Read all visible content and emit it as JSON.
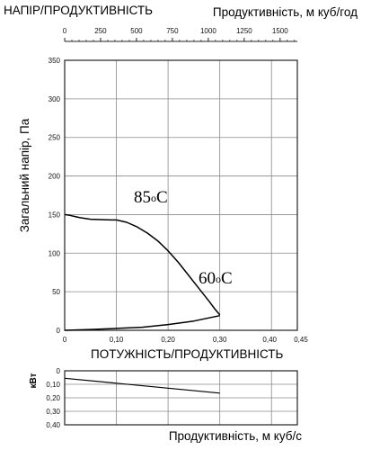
{
  "header": {
    "left_title": "НАПІР/ПРОДУКТИВНІСТЬ",
    "right_title": "Продуктивність, м куб/год"
  },
  "top_axis": {
    "ticks": [
      "0",
      "250",
      "500",
      "750",
      "1000",
      "1250",
      "1500"
    ],
    "range": [
      0,
      1620
    ]
  },
  "chart_data": [
    {
      "type": "line",
      "xlabel": "",
      "ylabel": "Загальний напір, Па",
      "xlim": [
        0,
        0.45
      ],
      "ylim": [
        0,
        350
      ],
      "x_ticks": [
        "0",
        "0,10",
        "0,20",
        "0,30",
        "0,40",
        "0,45"
      ],
      "y_ticks": [
        "0",
        "50",
        "100",
        "150",
        "200",
        "250",
        "300",
        "350"
      ],
      "grid": true,
      "series": [
        {
          "role": "pressure",
          "x": [
            0,
            0.01,
            0.02,
            0.03,
            0.04,
            0.05,
            0.07,
            0.09,
            0.1,
            0.12,
            0.14,
            0.16,
            0.18,
            0.2,
            0.22,
            0.24,
            0.26,
            0.28,
            0.29,
            0.3
          ],
          "y": [
            150,
            149,
            147.5,
            146,
            145,
            144,
            143.5,
            143,
            143,
            140,
            134,
            126,
            116,
            103,
            88,
            71,
            54,
            37,
            28,
            20
          ]
        },
        {
          "role": "power-on-head-axes",
          "x": [
            0,
            0.05,
            0.1,
            0.15,
            0.2,
            0.25,
            0.3
          ],
          "y": [
            0,
            1,
            2.5,
            4,
            7.5,
            12,
            19
          ]
        }
      ],
      "annotations": [
        {
          "base": "85",
          "sup": "o",
          "unit": "C"
        },
        {
          "base": "60",
          "sup": "o",
          "unit": "C"
        }
      ],
      "footer_label": "ПОТУЖНІСТЬ/ПРОДУКТИВНІСТЬ"
    },
    {
      "type": "line",
      "xlabel": "Продуктивність, м куб/с",
      "ylabel": "кВт",
      "xlim": [
        0,
        0.45
      ],
      "ylim": [
        0,
        0.4
      ],
      "y_inverted": true,
      "y_ticks": [
        "0",
        "0,10",
        "0,20",
        "0,30",
        "0,40"
      ],
      "grid": true,
      "series": [
        {
          "role": "power",
          "x": [
            0,
            0.3
          ],
          "y": [
            0.055,
            0.165
          ]
        }
      ]
    }
  ]
}
